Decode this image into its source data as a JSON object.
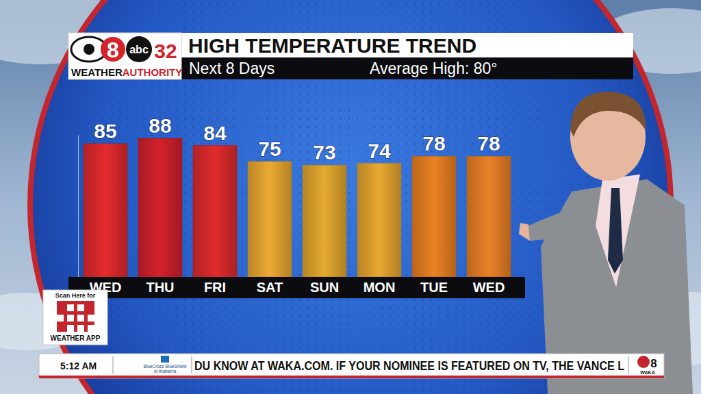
{
  "chart_data": {
    "type": "bar",
    "title": "HIGH TEMPERATURE TREND",
    "subtitle": "Next 8 Days",
    "annotations": [
      "Average High: 80°"
    ],
    "categories": [
      "WED",
      "THU",
      "FRI",
      "SAT",
      "SUN",
      "MON",
      "TUE",
      "WED"
    ],
    "values": [
      85,
      88,
      84,
      75,
      73,
      74,
      78,
      78
    ],
    "colors": [
      "#d8292b",
      "#c91f2a",
      "#d42a2b",
      "#e0a12f",
      "#d9a02c",
      "#dd9f2e",
      "#e07b22",
      "#df7a24"
    ],
    "ylim": [
      10,
      90
    ],
    "data_labels": true,
    "tick_labels": "x"
  },
  "page": {
    "logo": {
      "channel_a": "8",
      "network_b": "abc",
      "channel_b": "32",
      "weather": "WEATHER",
      "authority": "AUTHORITY"
    },
    "qr": {
      "line1": "Scan Here for",
      "line2": "WEATHER APP"
    },
    "ticker": {
      "time": "5:12 AM",
      "sponsor": [
        "BlueCross BlueShield",
        "of Alabama"
      ],
      "text": "DU KNOW AT WAKA.COM. IF YOUR NOMINEE IS FEATURED ON TV, THE VANCE L",
      "station_channel": "8",
      "station": "WAKA"
    }
  }
}
